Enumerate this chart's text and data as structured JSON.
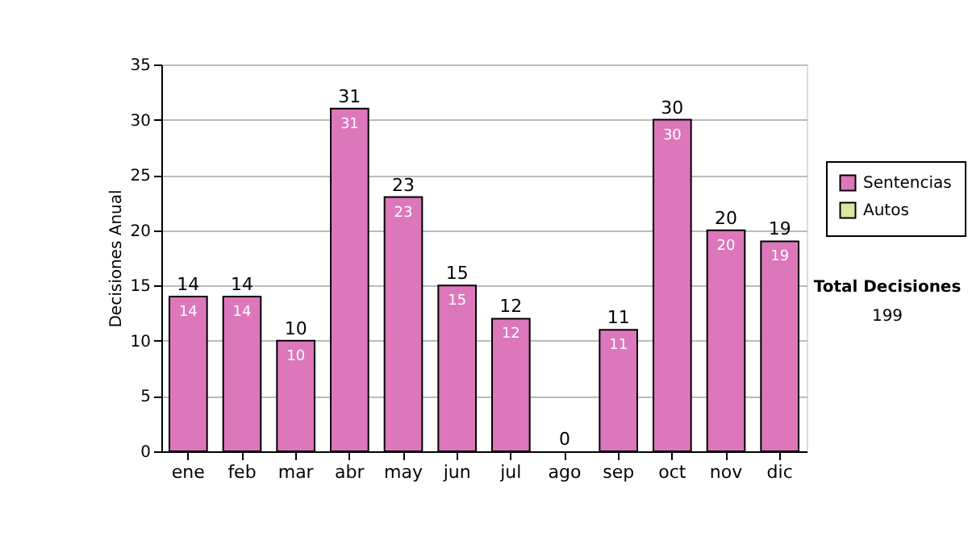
{
  "chart_data": {
    "type": "bar",
    "stacked": true,
    "ylabel": "Decisiones Anual",
    "categories": [
      "ene",
      "feb",
      "mar",
      "abr",
      "may",
      "jun",
      "jul",
      "ago",
      "sep",
      "oct",
      "nov",
      "dic"
    ],
    "series": [
      {
        "name": "Sentencias",
        "color": "#dd77bb",
        "values": [
          14,
          14,
          10,
          31,
          23,
          15,
          12,
          0,
          11,
          30,
          20,
          19
        ],
        "value_labels": [
          "14",
          "14",
          "10",
          "31",
          "23",
          "15",
          "12",
          null,
          "11",
          "30",
          "20",
          "19"
        ]
      },
      {
        "name": "Autos",
        "color": "#d8e8a0",
        "values": [
          0,
          0,
          0,
          0,
          0,
          0,
          0,
          0,
          0,
          0,
          0,
          0
        ]
      }
    ],
    "totals": [
      "14",
      "14",
      "10",
      "31",
      "23",
      "15",
      "12",
      "0",
      "11",
      "30",
      "20",
      "19"
    ],
    "ylim": [
      0,
      35
    ],
    "yticks": [
      0,
      5,
      10,
      15,
      20,
      25,
      30,
      35
    ],
    "grid": "y",
    "legend": "right",
    "annotations": [
      "Total Decisiones",
      "199"
    ]
  }
}
